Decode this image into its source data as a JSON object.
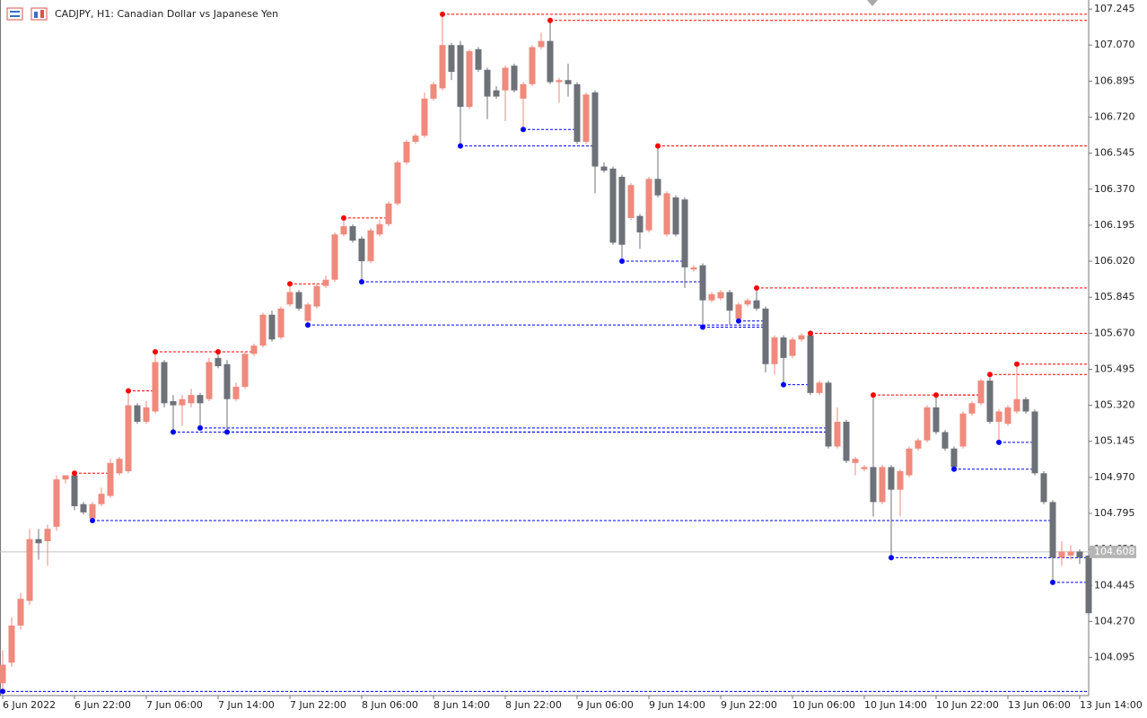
{
  "chart_data": {
    "type": "candlestick",
    "title": "CADJPY, H1:  Canadian Dollar vs Japanese Yen",
    "bull_color": "#ef8a7c",
    "bear_color": "#6d7178",
    "up_fractal_color": "#ff0000",
    "down_fractal_color": "#0000ff",
    "ylim": [
      103.91,
      107.289
    ],
    "yticks": [
      {
        "value": 107.245,
        "label": "107.245"
      },
      {
        "value": 107.07,
        "label": "107.070"
      },
      {
        "value": 106.895,
        "label": "106.895"
      },
      {
        "value": 106.72,
        "label": "106.720"
      },
      {
        "value": 106.545,
        "label": "106.545"
      },
      {
        "value": 106.37,
        "label": "106.370"
      },
      {
        "value": 106.195,
        "label": "106.195"
      },
      {
        "value": 106.02,
        "label": "106.020"
      },
      {
        "value": 105.845,
        "label": "105.845"
      },
      {
        "value": 105.67,
        "label": "105.670"
      },
      {
        "value": 105.495,
        "label": "105.495"
      },
      {
        "value": 105.32,
        "label": "105.320"
      },
      {
        "value": 105.145,
        "label": "105.145"
      },
      {
        "value": 104.97,
        "label": "104.970"
      },
      {
        "value": 104.795,
        "label": "104.795"
      },
      {
        "value": 104.62,
        "label": "104.620"
      },
      {
        "value": 104.445,
        "label": "104.445"
      },
      {
        "value": 104.27,
        "label": "104.270"
      },
      {
        "value": 104.095,
        "label": "104.095"
      }
    ],
    "xticks": [
      {
        "value": 0,
        "label": "6 Jun 2022"
      },
      {
        "value": 8,
        "label": "6 Jun 22:00"
      },
      {
        "value": 16,
        "label": "7 Jun 06:00"
      },
      {
        "value": 24,
        "label": "7 Jun 14:00"
      },
      {
        "value": 32,
        "label": "7 Jun 22:00"
      },
      {
        "value": 40,
        "label": "8 Jun 06:00"
      },
      {
        "value": 48,
        "label": "8 Jun 14:00"
      },
      {
        "value": 56,
        "label": "8 Jun 22:00"
      },
      {
        "value": 64,
        "label": "9 Jun 06:00"
      },
      {
        "value": 72,
        "label": "9 Jun 14:00"
      },
      {
        "value": 80,
        "label": "9 Jun 22:00"
      },
      {
        "value": 88,
        "label": "10 Jun 06:00"
      },
      {
        "value": 96,
        "label": "10 Jun 14:00"
      },
      {
        "value": 104,
        "label": "10 Jun 22:00"
      },
      {
        "value": 112,
        "label": "13 Jun 06:00"
      },
      {
        "value": 120,
        "label": "13 Jun 14:00"
      }
    ],
    "last_price": 104.608,
    "open": [
      103.97,
      104.07,
      104.25,
      104.37,
      104.67,
      104.66,
      104.73,
      104.96,
      104.98,
      104.84,
      104.77,
      104.84,
      104.88,
      104.99,
      105.0,
      105.32,
      105.24,
      105.29,
      105.53,
      105.34,
      105.32,
      105.33,
      105.37,
      105.35,
      105.55,
      105.52,
      105.35,
      105.41,
      105.57,
      105.61,
      105.76,
      105.65,
      105.81,
      105.87,
      105.73,
      105.8,
      105.9,
      105.93,
      106.15,
      106.19,
      106.13,
      106.02,
      106.15,
      106.2,
      106.3,
      106.5,
      106.6,
      106.63,
      106.81,
      106.86,
      107.07,
      107.07,
      106.77,
      107.05,
      106.95,
      106.85,
      106.85,
      106.97,
      106.81,
      106.88,
      107.06,
      107.09,
      106.89,
      106.9,
      106.88,
      106.6,
      106.84,
      106.48,
      106.47,
      106.43,
      106.23,
      106.24,
      106.17,
      106.42,
      106.15,
      106.33,
      106.32,
      105.98,
      106.0,
      105.83,
      105.84,
      105.87,
      105.74,
      105.81,
      105.83,
      105.79,
      105.52,
      105.65,
      105.56,
      105.64,
      105.66,
      105.38,
      105.43,
      105.12,
      105.24,
      105.04,
      105.01,
      105.02,
      104.85,
      105.02,
      104.91,
      104.98,
      105.11,
      105.15,
      105.31,
      105.19,
      105.11,
      105.12,
      105.28,
      105.33,
      105.44,
      105.24,
      105.23,
      105.29,
      105.35,
      105.29,
      104.99,
      104.85,
      104.58,
      104.59,
      104.61,
      104.59
    ],
    "high": [
      104.13,
      104.29,
      104.41,
      104.72,
      104.72,
      104.74,
      104.98,
      104.98,
      104.99,
      104.85,
      104.85,
      104.92,
      105.06,
      105.07,
      105.39,
      105.33,
      105.34,
      105.58,
      105.54,
      105.37,
      105.37,
      105.4,
      105.38,
      105.55,
      105.58,
      105.54,
      105.43,
      105.58,
      105.62,
      105.77,
      105.78,
      105.8,
      105.91,
      105.88,
      105.82,
      105.91,
      105.95,
      106.16,
      106.23,
      106.2,
      106.14,
      106.18,
      106.22,
      106.31,
      106.51,
      106.61,
      106.64,
      106.84,
      106.89,
      107.22,
      107.08,
      107.09,
      107.05,
      107.06,
      106.96,
      106.87,
      106.97,
      106.98,
      106.89,
      107.07,
      107.13,
      107.19,
      106.91,
      106.98,
      106.89,
      106.84,
      106.85,
      106.5,
      106.48,
      106.44,
      106.4,
      106.25,
      106.43,
      106.58,
      106.36,
      106.34,
      106.33,
      106.0,
      106.01,
      105.87,
      105.88,
      105.88,
      105.82,
      105.84,
      105.89,
      105.8,
      105.66,
      105.66,
      105.65,
      105.67,
      105.67,
      105.44,
      105.44,
      105.31,
      105.25,
      105.07,
      105.03,
      105.37,
      105.03,
      105.03,
      105.01,
      105.12,
      105.16,
      105.32,
      105.37,
      105.2,
      105.12,
      105.29,
      105.34,
      105.45,
      105.47,
      105.3,
      105.32,
      105.52,
      105.36,
      105.3,
      105.0,
      104.86,
      104.66,
      104.64,
      104.62,
      104.6
    ],
    "low": [
      103.93,
      104.05,
      104.23,
      104.35,
      104.57,
      104.54,
      104.71,
      104.94,
      104.81,
      104.79,
      104.76,
      104.83,
      104.87,
      104.98,
      104.99,
      105.23,
      105.23,
      105.28,
      105.31,
      105.19,
      105.22,
      105.31,
      105.21,
      105.34,
      105.5,
      105.19,
      105.34,
      105.4,
      105.56,
      105.6,
      105.63,
      105.64,
      105.8,
      105.78,
      105.71,
      105.79,
      105.89,
      105.92,
      106.14,
      106.11,
      105.92,
      106.01,
      106.14,
      106.19,
      106.29,
      106.49,
      106.59,
      106.62,
      106.8,
      106.85,
      106.9,
      106.58,
      106.76,
      106.94,
      106.71,
      106.81,
      106.7,
      106.84,
      106.66,
      106.87,
      107.05,
      106.88,
      106.79,
      106.82,
      106.59,
      106.59,
      106.35,
      106.45,
      106.1,
      106.02,
      106.22,
      106.08,
      106.16,
      106.33,
      106.14,
      106.14,
      105.89,
      105.97,
      105.7,
      105.82,
      105.83,
      105.71,
      105.73,
      105.8,
      105.78,
      105.48,
      105.47,
      105.42,
      105.55,
      105.63,
      105.37,
      105.37,
      105.11,
      105.11,
      105.04,
      104.98,
      105.0,
      104.78,
      104.84,
      104.58,
      104.78,
      104.97,
      105.1,
      105.14,
      105.18,
      105.1,
      105.01,
      105.11,
      105.27,
      105.32,
      105.23,
      105.14,
      105.22,
      105.28,
      105.28,
      104.98,
      104.84,
      104.46,
      104.54,
      104.57,
      104.55,
      104.3
    ],
    "close": [
      104.06,
      104.25,
      104.38,
      104.67,
      104.65,
      104.72,
      104.96,
      104.98,
      104.83,
      104.8,
      104.84,
      104.89,
      105.04,
      105.06,
      105.32,
      105.24,
      105.31,
      105.53,
      105.33,
      105.32,
      105.35,
      105.37,
      105.33,
      105.53,
      105.51,
      105.35,
      105.41,
      105.57,
      105.61,
      105.76,
      105.64,
      105.79,
      105.87,
      105.79,
      105.81,
      105.9,
      105.93,
      106.15,
      106.19,
      106.12,
      106.02,
      106.17,
      106.2,
      106.3,
      106.5,
      106.6,
      106.63,
      106.81,
      106.88,
      107.07,
      106.94,
      106.77,
      107.04,
      106.95,
      106.82,
      106.82,
      106.96,
      106.85,
      106.88,
      107.06,
      107.09,
      106.89,
      106.9,
      106.88,
      106.6,
      106.83,
      106.48,
      106.46,
      106.11,
      106.1,
      106.39,
      106.16,
      106.42,
      106.34,
      106.35,
      106.15,
      105.99,
      105.99,
      105.83,
      105.86,
      105.87,
      105.78,
      105.81,
      105.83,
      105.79,
      105.52,
      105.65,
      105.55,
      105.64,
      105.66,
      105.38,
      105.43,
      105.12,
      105.24,
      105.05,
      105.06,
      105.02,
      104.85,
      105.02,
      104.91,
      105.0,
      105.11,
      105.15,
      105.31,
      105.19,
      105.11,
      105.02,
      105.28,
      105.33,
      105.44,
      105.24,
      105.29,
      105.31,
      105.35,
      105.29,
      104.99,
      104.85,
      104.58,
      104.61,
      104.61,
      104.58,
      104.31
    ],
    "up_fractals": [
      8,
      14,
      17,
      24,
      32,
      38,
      49,
      61,
      73,
      84,
      90,
      97,
      104,
      110,
      113
    ],
    "down_fractals": [
      0,
      10,
      19,
      22,
      25,
      34,
      40,
      51,
      58,
      69,
      78,
      82,
      87,
      99,
      106,
      111,
      117
    ]
  }
}
